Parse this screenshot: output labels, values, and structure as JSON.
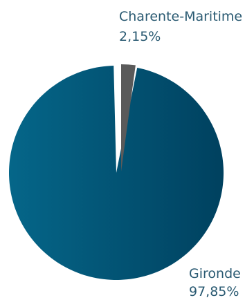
{
  "chart_data": {
    "type": "pie",
    "slices": [
      {
        "label": "Gironde",
        "value": 97.85,
        "value_label": "97,85%",
        "color": "#035475"
      },
      {
        "label": "Charente-Maritime",
        "value": 2.15,
        "value_label": "2,15%",
        "color": "#5a5a5a"
      }
    ]
  }
}
